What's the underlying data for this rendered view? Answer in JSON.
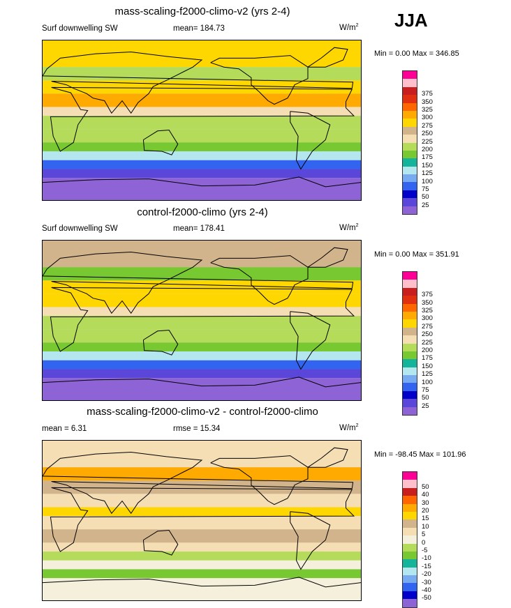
{
  "season": "JJA",
  "colorbars": {
    "abs": {
      "colors": [
        "#8e63d6",
        "#5a47d9",
        "#0000c8",
        "#3264f0",
        "#78aaf0",
        "#b4e6f0",
        "#14b49b",
        "#78c832",
        "#b4dc5a",
        "#f5deb4",
        "#d2b48c",
        "#ffd700",
        "#ffaa00",
        "#ff6600",
        "#e03010",
        "#c81e1e",
        "#ffc0cb",
        "#ff0096"
      ],
      "labels": [
        "25",
        "50",
        "75",
        "100",
        "125",
        "150",
        "175",
        "200",
        "225",
        "250",
        "275",
        "300",
        "325",
        "350",
        "375"
      ]
    },
    "diff": {
      "colors": [
        "#8e63d6",
        "#0000c8",
        "#3264f0",
        "#78aaf0",
        "#b4e6f0",
        "#14b49b",
        "#78c832",
        "#b4dc5a",
        "#f5f0dc",
        "#f5deb4",
        "#d2b48c",
        "#ffd700",
        "#ffaa00",
        "#ff6600",
        "#c81e1e",
        "#ffc0cb",
        "#ff0096"
      ],
      "labels": [
        "-50",
        "-40",
        "-30",
        "-20",
        "-15",
        "-10",
        "-5",
        "0",
        "5",
        "10",
        "15",
        "20",
        "30",
        "40",
        "50"
      ]
    }
  },
  "panels": [
    {
      "title": "mass-scaling-f2000-climo-v2 (yrs 2-4)",
      "left_label": "Surf downwelling SW",
      "center_label": "mean= 184.73",
      "units_base": "W/m",
      "units_sup": "2",
      "minmax": "Min =   0.00 Max = 346.85"
    },
    {
      "title": "control-f2000-climo (yrs 2-4)",
      "left_label": "Surf downwelling SW",
      "center_label": "mean= 178.41",
      "units_base": "W/m",
      "units_sup": "2",
      "minmax": "Min =   0.00 Max = 351.91"
    },
    {
      "title": "mass-scaling-f2000-climo-v2 - control-f2000-climo",
      "left_label": "mean =   6.31",
      "center_label": "rmse =  15.34",
      "units_base": "W/m",
      "units_sup": "2",
      "minmax": "Min = -98.45 Max = 101.96"
    }
  ],
  "chart_data": [
    {
      "type": "heatmap",
      "title": "mass-scaling-f2000-climo-v2 (yrs 2-4)",
      "variable": "Surf downwelling SW",
      "season": "JJA",
      "mean": 184.73,
      "min": 0.0,
      "max": 346.85,
      "units": "W/m2",
      "contour_levels": [
        25,
        50,
        75,
        100,
        125,
        150,
        175,
        200,
        225,
        250,
        275,
        300,
        325,
        350,
        375
      ],
      "zonal_bands_top_to_bottom": [
        {
          "lat_range": [
            60,
            90
          ],
          "value": 275
        },
        {
          "lat_range": [
            45,
            60
          ],
          "value": 200
        },
        {
          "lat_range": [
            30,
            45
          ],
          "value": 290
        },
        {
          "lat_range": [
            15,
            30
          ],
          "value": 300
        },
        {
          "lat_range": [
            5,
            15
          ],
          "value": 240
        },
        {
          "lat_range": [
            -10,
            5
          ],
          "value": 210
        },
        {
          "lat_range": [
            -25,
            -10
          ],
          "value": 220
        },
        {
          "lat_range": [
            -35,
            -25
          ],
          "value": 180
        },
        {
          "lat_range": [
            -45,
            -35
          ],
          "value": 140
        },
        {
          "lat_range": [
            -55,
            -45
          ],
          "value": 90
        },
        {
          "lat_range": [
            -65,
            -55
          ],
          "value": 45
        },
        {
          "lat_range": [
            -90,
            -65
          ],
          "value": 10
        }
      ]
    },
    {
      "type": "heatmap",
      "title": "control-f2000-climo (yrs 2-4)",
      "variable": "Surf downwelling SW",
      "season": "JJA",
      "mean": 178.41,
      "min": 0.0,
      "max": 351.91,
      "units": "W/m2",
      "contour_levels": [
        25,
        50,
        75,
        100,
        125,
        150,
        175,
        200,
        225,
        250,
        275,
        300,
        325,
        350,
        375
      ],
      "zonal_bands_top_to_bottom": [
        {
          "lat_range": [
            60,
            90
          ],
          "value": 270
        },
        {
          "lat_range": [
            45,
            60
          ],
          "value": 180
        },
        {
          "lat_range": [
            30,
            45
          ],
          "value": 285
        },
        {
          "lat_range": [
            15,
            30
          ],
          "value": 295
        },
        {
          "lat_range": [
            5,
            15
          ],
          "value": 225
        },
        {
          "lat_range": [
            -10,
            5
          ],
          "value": 200
        },
        {
          "lat_range": [
            -25,
            -10
          ],
          "value": 215
        },
        {
          "lat_range": [
            -35,
            -25
          ],
          "value": 175
        },
        {
          "lat_range": [
            -45,
            -35
          ],
          "value": 130
        },
        {
          "lat_range": [
            -55,
            -45
          ],
          "value": 85
        },
        {
          "lat_range": [
            -65,
            -55
          ],
          "value": 40
        },
        {
          "lat_range": [
            -90,
            -65
          ],
          "value": 8
        }
      ]
    },
    {
      "type": "heatmap",
      "title": "mass-scaling-f2000-climo-v2 - control-f2000-climo",
      "variable": "Surf downwelling SW difference",
      "season": "JJA",
      "mean": 6.31,
      "rmse": 15.34,
      "min": -98.45,
      "max": 101.96,
      "units": "W/m2",
      "contour_levels": [
        -50,
        -40,
        -30,
        -20,
        -15,
        -10,
        -5,
        0,
        5,
        10,
        15,
        20,
        30,
        40,
        50
      ],
      "zonal_bands_top_to_bottom": [
        {
          "lat_range": [
            60,
            90
          ],
          "value": 8
        },
        {
          "lat_range": [
            45,
            60
          ],
          "value": 20
        },
        {
          "lat_range": [
            30,
            45
          ],
          "value": 12
        },
        {
          "lat_range": [
            15,
            30
          ],
          "value": 6
        },
        {
          "lat_range": [
            5,
            15
          ],
          "value": 18
        },
        {
          "lat_range": [
            -10,
            5
          ],
          "value": 8
        },
        {
          "lat_range": [
            -25,
            -10
          ],
          "value": 10
        },
        {
          "lat_range": [
            -35,
            -25
          ],
          "value": 6
        },
        {
          "lat_range": [
            -45,
            -35
          ],
          "value": -3
        },
        {
          "lat_range": [
            -55,
            -45
          ],
          "value": 2
        },
        {
          "lat_range": [
            -65,
            -55
          ],
          "value": -6
        },
        {
          "lat_range": [
            -90,
            -65
          ],
          "value": 1
        }
      ]
    }
  ]
}
